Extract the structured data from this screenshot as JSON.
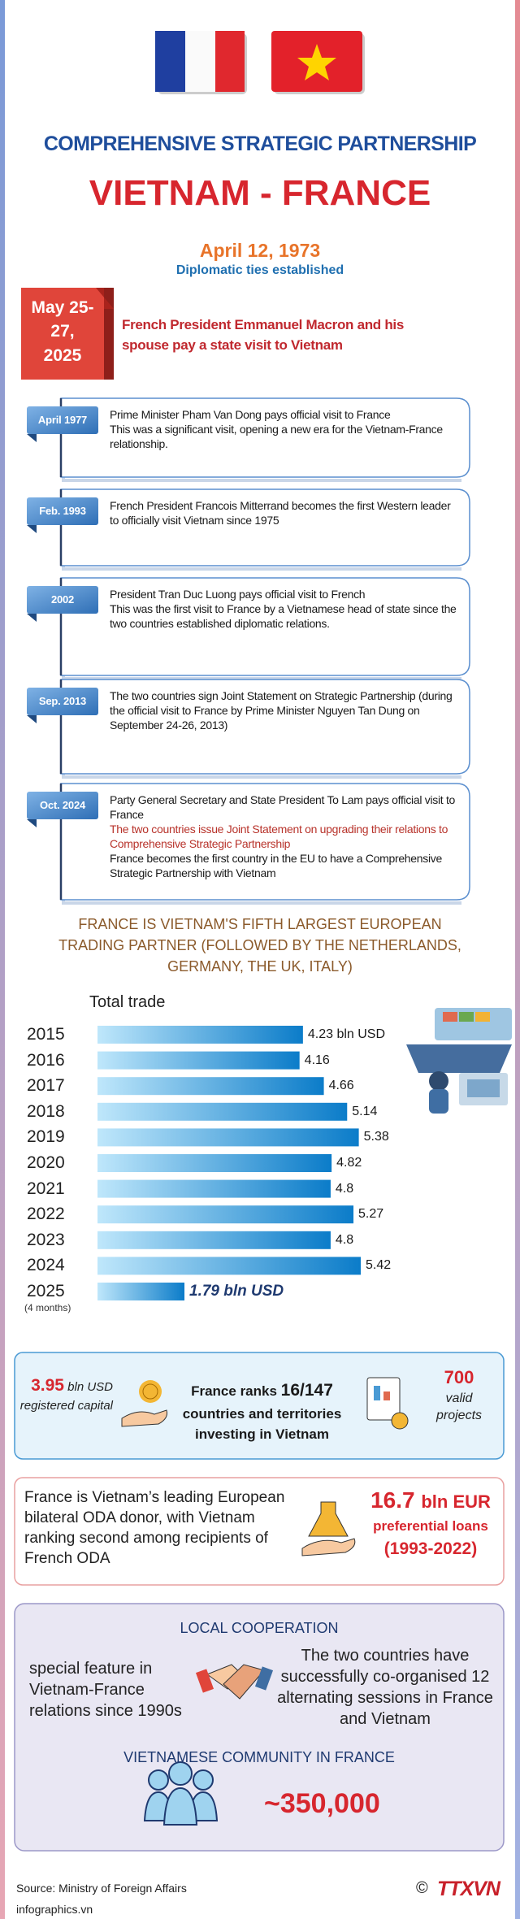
{
  "header": {
    "title": "COMPREHENSIVE STRATEGIC PARTNERSHIP",
    "subtitle": "VIETNAM - FRANCE"
  },
  "established": {
    "date": "April 12, 1973",
    "note": "Diplomatic ties established"
  },
  "highlight": {
    "date": "May 25-27, 2025",
    "text": "French President Emmanuel Macron and his spouse pay a state visit to Vietnam"
  },
  "timeline": [
    {
      "date": "April 1977",
      "paragraphs": [
        {
          "text": "Prime Minister Pham Van Dong pays official visit to France"
        },
        {
          "text": "This was a significant visit, opening a new era for the Vietnam-France relationship."
        }
      ]
    },
    {
      "date": "Feb. 1993",
      "paragraphs": [
        {
          "text": "French President Francois Mitterrand becomes the first Western leader to officially visit Vietnam since 1975"
        }
      ]
    },
    {
      "date": "2002",
      "paragraphs": [
        {
          "text": "President Tran Duc Luong pays official visit to French"
        },
        {
          "text": "This was the first visit to France by a Vietnamese head of state since the two countries established diplomatic relations."
        }
      ]
    },
    {
      "date": "Sep. 2013",
      "paragraphs": [
        {
          "text": "The two countries sign Joint Statement on Strategic Partnership (during the official visit to France by Prime Minister Nguyen Tan Dung on September 24-26, 2013)"
        }
      ]
    },
    {
      "date": "Oct. 2024",
      "paragraphs": [
        {
          "text": "Party General Secretary and State President To Lam pays official visit to France"
        },
        {
          "text": "The two countries issue Joint Statement on upgrading their relations to Comprehensive Strategic Partnership",
          "color": "#b8332b"
        },
        {
          "text": "France becomes the first country in the EU to have a Comprehensive Strategic Partnership with Vietnam"
        }
      ]
    }
  ],
  "trade_heading": "FRANCE IS VIETNAM'S FIFTH LARGEST EUROPEAN TRADING PARTNER (FOLLOWED BY THE NETHERLANDS, GERMANY, THE UK, ITALY)",
  "chart_data": {
    "type": "bar",
    "orientation": "horizontal",
    "title": "Total trade",
    "categories": [
      "2015",
      "2016",
      "2017",
      "2018",
      "2019",
      "2020",
      "2021",
      "2022",
      "2023",
      "2024",
      "2025"
    ],
    "note": "(4 months)",
    "values": [
      4.23,
      4.16,
      4.66,
      5.14,
      5.38,
      4.82,
      4.8,
      5.27,
      4.8,
      5.42,
      1.79
    ],
    "value_labels": [
      "4.23 bln USD",
      "4.16",
      "4.66",
      "5.14",
      "5.38",
      "4.82",
      "4.8",
      "5.27",
      "4.8",
      "5.42",
      "1.79 bln USD"
    ],
    "color": "#0b7cc9"
  },
  "investment": {
    "capital": {
      "amount": 3.95,
      "unit": "bln USD",
      "label": "registered capital"
    },
    "rank": {
      "prefix": "France ranks",
      "rank": "16/147",
      "suffix": "countries and territories investing in Vietnam"
    },
    "projects": {
      "count": 700,
      "label": "valid projects"
    }
  },
  "oda": {
    "text": "France is Vietnam’s leading European bilateral ODA donor, with Vietnam ranking second among recipients of French ODA",
    "amount": 16.7,
    "unit": "bln EUR",
    "label": "preferential loans",
    "period": "(1993-2022)"
  },
  "local": {
    "title": "LOCAL COOPERATION",
    "left": "special feature in Vietnam-France relations since 1990s",
    "right": "The two countries have successfully co-organised 12 alternating sessions in France and Vietnam"
  },
  "community": {
    "title": "VIETNAMESE COMMUNITY IN FRANCE",
    "value": "~350,000"
  },
  "footer": {
    "source": "Source: Ministry of Foreign Affairs",
    "site": "infographics.vn",
    "copyright": "©",
    "logo": "TTXVN"
  }
}
